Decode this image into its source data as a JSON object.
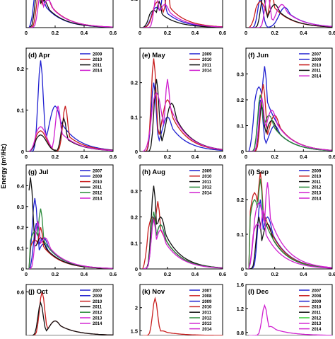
{
  "ylabel": "Energy (m²/Hz)",
  "colors": {
    "2007": "#1f1fd0",
    "2008": "#d03030",
    "2009": "#1f1fd0",
    "2010": "#c81e1e",
    "2011": "#111111",
    "2012": "#2a8a3a",
    "2013": "#d020d0",
    "2014": "#d020d0",
    "2008_dec": "#c81e1e",
    "2012_dec": "#33cc33"
  },
  "chart_data": [
    {
      "type": "line",
      "panel": "a",
      "title": "",
      "xlim": [
        0,
        0.6
      ],
      "ylim": [
        0,
        0.1
      ],
      "xticks": [
        "0",
        "0.2",
        "0.4",
        "0.6"
      ],
      "yticks": [],
      "legend": [],
      "series": [
        {
          "key": "2009",
          "peak_x": 0.07,
          "peak_y": 0.12,
          "sec_x": 0.1,
          "sec_y": 0.09
        },
        {
          "key": "2010",
          "peak_x": 0.09,
          "peak_y": 0.11,
          "sec_x": 0.14,
          "sec_y": 0.09
        },
        {
          "key": "2011",
          "peak_x": 0.08,
          "peak_y": 0.12,
          "sec_x": 0.12,
          "sec_y": 0.08
        },
        {
          "key": "2014",
          "peak_x": 0.1,
          "peak_y": 0.1,
          "sec_x": 0.15,
          "sec_y": 0.08
        }
      ]
    },
    {
      "type": "line",
      "panel": "b",
      "title": "",
      "xlim": [
        0,
        0.6
      ],
      "ylim": [
        0,
        0.12
      ],
      "xticks": [
        "0",
        "0.2",
        "0.4",
        "0.6"
      ],
      "yticks": [
        "0.1"
      ],
      "legend": [],
      "series": [
        {
          "key": "2009",
          "peak_x": 0.17,
          "peak_y": 0.12,
          "sec_x": 0.12,
          "sec_y": 0.07
        },
        {
          "key": "2010",
          "peak_x": 0.2,
          "peak_y": 0.13,
          "sec_x": 0.13,
          "sec_y": 0.09
        },
        {
          "key": "2011",
          "peak_x": 0.14,
          "peak_y": 0.09,
          "sec_x": 0.1,
          "sec_y": 0.06
        },
        {
          "key": "2014",
          "peak_x": 0.12,
          "peak_y": 0.11,
          "sec_x": 0.18,
          "sec_y": 0.08
        }
      ]
    },
    {
      "type": "line",
      "panel": "c",
      "title": "",
      "xlim": [
        0,
        0.6
      ],
      "ylim": [
        0,
        0.12
      ],
      "xticks": [
        "0",
        "0.2",
        "0.4",
        "0.6"
      ],
      "yticks": [],
      "legend": [],
      "series": [
        {
          "key": "2009",
          "peak_x": 0.1,
          "peak_y": 0.1,
          "sec_x": 0.27,
          "sec_y": 0.07
        },
        {
          "key": "2010",
          "peak_x": 0.18,
          "peak_y": 0.12,
          "sec_x": 0.1,
          "sec_y": 0.09
        },
        {
          "key": "2011",
          "peak_x": 0.12,
          "peak_y": 0.11,
          "sec_x": 0.2,
          "sec_y": 0.08
        },
        {
          "key": "2014",
          "peak_x": 0.15,
          "peak_y": 0.12,
          "sec_x": 0.25,
          "sec_y": 0.08
        }
      ]
    },
    {
      "type": "line",
      "panel": "d",
      "title": "(d) Apr",
      "xlim": [
        0,
        0.6
      ],
      "ylim": [
        0,
        0.25
      ],
      "xticks": [
        "0",
        "0.2",
        "0.4",
        "0.6"
      ],
      "yticks": [
        "0",
        "0.1",
        "0.2"
      ],
      "legend": [
        "2009",
        "2010",
        "2011",
        "2014"
      ],
      "series": [
        {
          "key": "2009",
          "peak_x": 0.1,
          "peak_y": 0.22,
          "sec_x": 0.2,
          "sec_y": 0.11
        },
        {
          "key": "2010",
          "peak_x": 0.27,
          "peak_y": 0.11,
          "sec_x": 0.1,
          "sec_y": 0.05
        },
        {
          "key": "2011",
          "peak_x": 0.26,
          "peak_y": 0.08,
          "sec_x": 0.1,
          "sec_y": 0.04
        },
        {
          "key": "2014",
          "peak_x": 0.22,
          "peak_y": 0.11,
          "sec_x": 0.1,
          "sec_y": 0.06
        }
      ]
    },
    {
      "type": "line",
      "panel": "e",
      "title": "(e) May",
      "xlim": [
        0,
        0.6
      ],
      "ylim": [
        0,
        0.3
      ],
      "xticks": [
        "0",
        "0.2",
        "0.4",
        "0.6"
      ],
      "yticks": [
        "0",
        "0.1",
        "0.2"
      ],
      "legend": [
        "2009",
        "2010",
        "2011",
        "2014"
      ],
      "series": [
        {
          "key": "2009",
          "peak_x": 0.1,
          "peak_y": 0.2,
          "sec_x": 0.2,
          "sec_y": 0.1
        },
        {
          "key": "2010",
          "peak_x": 0.1,
          "peak_y": 0.27,
          "sec_x": 0.2,
          "sec_y": 0.15
        },
        {
          "key": "2011",
          "peak_x": 0.12,
          "peak_y": 0.21,
          "sec_x": 0.23,
          "sec_y": 0.14
        },
        {
          "key": "2014",
          "peak_x": 0.2,
          "peak_y": 0.21,
          "sec_x": 0.12,
          "sec_y": 0.17
        }
      ]
    },
    {
      "type": "line",
      "panel": "f",
      "title": "(f) Jun",
      "xlim": [
        0,
        0.6
      ],
      "ylim": [
        0,
        0.4
      ],
      "xticks": [
        "0",
        "0.2",
        "0.4",
        "0.6"
      ],
      "yticks": [
        "0",
        "0.1",
        "0.2",
        "0.3"
      ],
      "legend": [
        "2007",
        "2009",
        "2010",
        "2011",
        "2014"
      ],
      "series": [
        {
          "key": "2007",
          "peak_x": 0.1,
          "peak_y": 0.2,
          "sec_x": 0.2,
          "sec_y": 0.1
        },
        {
          "key": "2009",
          "peak_x": 0.13,
          "peak_y": 0.33,
          "sec_x": 0.09,
          "sec_y": 0.25
        },
        {
          "key": "2010",
          "peak_x": 0.12,
          "peak_y": 0.26,
          "sec_x": 0.2,
          "sec_y": 0.14
        },
        {
          "key": "2011",
          "peak_x": 0.11,
          "peak_y": 0.18,
          "sec_x": 0.18,
          "sec_y": 0.12
        },
        {
          "key": "2012",
          "peak_x": 0.1,
          "peak_y": 0.22,
          "sec_x": 0.16,
          "sec_y": 0.14
        },
        {
          "key": "2014",
          "peak_x": 0.11,
          "peak_y": 0.21,
          "sec_x": 0.18,
          "sec_y": 0.16
        }
      ]
    },
    {
      "type": "line",
      "panel": "g",
      "title": "(g) Jul",
      "xlim": [
        0,
        0.6
      ],
      "ylim": [
        0,
        0.5
      ],
      "xticks": [
        "0",
        "0.2",
        "0.4",
        "0.6"
      ],
      "yticks": [
        "0",
        "0.1",
        "0.2",
        "0.3",
        "0.4"
      ],
      "legend": [
        "2007",
        "2009",
        "2010",
        "2011",
        "2012",
        "2014"
      ],
      "series": [
        {
          "key": "2007",
          "peak_x": 0.06,
          "peak_y": 0.34,
          "sec_x": 0.12,
          "sec_y": 0.12
        },
        {
          "key": "2009",
          "peak_x": 0.07,
          "peak_y": 0.22,
          "sec_x": 0.12,
          "sec_y": 0.15
        },
        {
          "key": "2010",
          "peak_x": 0.1,
          "peak_y": 0.2,
          "sec_x": 0.06,
          "sec_y": 0.14
        },
        {
          "key": "2011",
          "peak_x": 0.03,
          "peak_y": 0.44,
          "sec_x": 0.1,
          "sec_y": 0.15
        },
        {
          "key": "2012",
          "peak_x": 0.1,
          "peak_y": 0.29,
          "sec_x": 0.06,
          "sec_y": 0.18
        },
        {
          "key": "2014",
          "peak_x": 0.08,
          "peak_y": 0.23,
          "sec_x": 0.13,
          "sec_y": 0.15
        }
      ]
    },
    {
      "type": "line",
      "panel": "h",
      "title": "(h) Aug",
      "xlim": [
        0,
        0.6
      ],
      "ylim": [
        0,
        0.4
      ],
      "xticks": [
        "0",
        "0.2",
        "0.4",
        "0.6"
      ],
      "yticks": [
        "0",
        "0.1",
        "0.2",
        "0.3"
      ],
      "legend": [
        "2009",
        "2010",
        "2011",
        "2012",
        "2014"
      ],
      "series": [
        {
          "key": "2009",
          "peak_x": 0.1,
          "peak_y": 0.2,
          "sec_x": 0.15,
          "sec_y": 0.17
        },
        {
          "key": "2010",
          "peak_x": 0.13,
          "peak_y": 0.26,
          "sec_x": 0.09,
          "sec_y": 0.2
        },
        {
          "key": "2011",
          "peak_x": 0.1,
          "peak_y": 0.32,
          "sec_x": 0.15,
          "sec_y": 0.2
        },
        {
          "key": "2012",
          "peak_x": 0.1,
          "peak_y": 0.22,
          "sec_x": 0.15,
          "sec_y": 0.17
        },
        {
          "key": "2014",
          "peak_x": 0.1,
          "peak_y": 0.19,
          "sec_x": 0.15,
          "sec_y": 0.15
        }
      ]
    },
    {
      "type": "line",
      "panel": "i",
      "title": "(i) Sep",
      "xlim": [
        0,
        0.6
      ],
      "ylim": [
        0,
        0.3
      ],
      "xticks": [
        "0",
        "0.2",
        "0.4",
        "0.6"
      ],
      "yticks": [
        "0",
        "0.1",
        "0.2"
      ],
      "legend": [
        "2009",
        "2010",
        "2011",
        "2012",
        "2013",
        "2014"
      ],
      "series": [
        {
          "key": "2009",
          "peak_x": 0.1,
          "peak_y": 0.2,
          "sec_x": 0.15,
          "sec_y": 0.15
        },
        {
          "key": "2010",
          "peak_x": 0.1,
          "peak_y": 0.28,
          "sec_x": 0.06,
          "sec_y": 0.22
        },
        {
          "key": "2011",
          "peak_x": 0.09,
          "peak_y": 0.15,
          "sec_x": 0.15,
          "sec_y": 0.13
        },
        {
          "key": "2012",
          "peak_x": 0.1,
          "peak_y": 0.26,
          "sec_x": 0.06,
          "sec_y": 0.2
        },
        {
          "key": "2013",
          "peak_x": 0.15,
          "peak_y": 0.25,
          "sec_x": 0.09,
          "sec_y": 0.19
        },
        {
          "key": "2014",
          "peak_x": 0.12,
          "peak_y": 0.17,
          "sec_x": 0.08,
          "sec_y": 0.13
        }
      ]
    },
    {
      "type": "line",
      "panel": "j",
      "title": "(j) Oct",
      "xlim": [
        0,
        0.6
      ],
      "ylim": [
        0,
        0.7
      ],
      "xticks": [],
      "yticks": [
        "0.6"
      ],
      "legend": [
        "2007",
        "2009",
        "2010",
        "2011",
        "2012",
        "2013",
        "2014"
      ],
      "series": [
        {
          "key": "2010",
          "peak_x": 0.11,
          "peak_y": 0.6,
          "sec_x": 0.2,
          "sec_y": 0.2
        },
        {
          "key": "2011",
          "peak_x": 0.1,
          "peak_y": 0.45,
          "sec_x": 0.2,
          "sec_y": 0.2
        }
      ]
    },
    {
      "type": "line",
      "panel": "k",
      "title": "(k) Nov",
      "xlim": [
        0,
        0.6
      ],
      "ylim": [
        1.4,
        2.5
      ],
      "xticks": [],
      "yticks": [
        "1.5",
        "2"
      ],
      "legend": [
        "2007",
        "2008",
        "2009",
        "2010",
        "2011",
        "2012",
        "2013",
        "2014"
      ],
      "series": [
        {
          "key": "2010",
          "peak_x": 0.11,
          "peak_y": 2.2,
          "sec_x": 0.16,
          "sec_y": 1.5
        }
      ]
    },
    {
      "type": "line",
      "panel": "l",
      "title": "(l) Dec",
      "xlim": [
        0,
        0.6
      ],
      "ylim": [
        0.75,
        1.6
      ],
      "xticks": [],
      "yticks": [
        "0.8",
        "1.2",
        "1.6"
      ],
      "legend": [
        "2007",
        "2008",
        "2009",
        "2010",
        "2011",
        "2012",
        "2013",
        "2014"
      ],
      "series": [
        {
          "key": "2014",
          "peak_x": 0.13,
          "peak_y": 1.25,
          "sec_x": 0.17,
          "sec_y": 0.9
        }
      ]
    }
  ]
}
